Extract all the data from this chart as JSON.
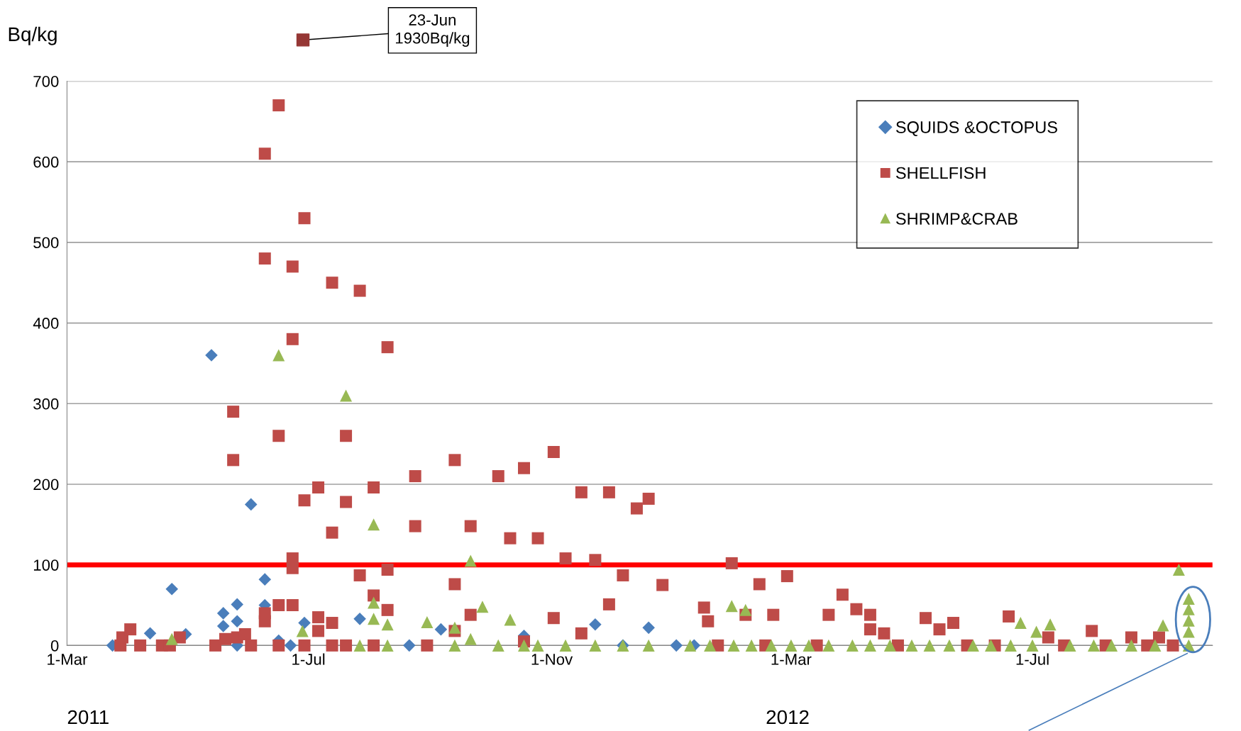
{
  "chart_data": {
    "type": "scatter",
    "ylabel": "Bq/kg",
    "xlim": [
      "2011-03-01",
      "2012-09-30"
    ],
    "xticks": [
      {
        "value": "2011-03-01",
        "label": "1-Mar"
      },
      {
        "value": "2011-07-01",
        "label": "1-Jul"
      },
      {
        "value": "2011-11-01",
        "label": "1-Nov"
      },
      {
        "value": "2012-03-01",
        "label": "1-Mar"
      },
      {
        "value": "2012-07-01",
        "label": "1-Jul"
      }
    ],
    "ylim": [
      0,
      700
    ],
    "yticks": [
      0,
      100,
      200,
      300,
      400,
      500,
      600,
      700
    ],
    "grid": "y",
    "legend": "top right",
    "ref_lines": [
      {
        "axis": "y",
        "value": 100,
        "color": "#ff0000",
        "line_style": "solid"
      }
    ],
    "annotations": [
      "23-Jun\n1930Bq/kg",
      "2011",
      "2012"
    ],
    "series": [
      {
        "name": "SQUIDS &OCTOPUS",
        "color": "#4a7ebb",
        "marker": "diamond",
        "x": [
          "2011-03-24",
          "2011-04-12",
          "2011-04-23",
          "2011-04-30",
          "2011-05-13",
          "2011-05-19",
          "2011-05-19",
          "2011-05-26",
          "2011-05-26",
          "2011-05-26",
          "2011-06-02",
          "2011-06-09",
          "2011-06-09",
          "2011-06-16",
          "2011-06-22",
          "2011-06-29",
          "2011-07-27",
          "2011-08-21",
          "2011-09-06",
          "2011-10-18",
          "2011-11-23",
          "2011-12-07",
          "2011-12-20",
          "2012-01-03",
          "2012-01-12"
        ],
        "values": [
          0,
          15,
          70,
          14,
          360,
          40,
          24,
          51,
          30,
          0,
          175,
          82,
          50,
          6,
          0,
          28,
          33,
          0,
          20,
          12,
          26,
          0,
          22,
          0,
          0
        ]
      },
      {
        "name": "SHELLFISH",
        "color": "#be4b48",
        "marker": "square",
        "x": [
          "2011-03-28",
          "2011-03-29",
          "2011-04-02",
          "2011-04-07",
          "2011-04-18",
          "2011-04-22",
          "2011-04-27",
          "2011-05-15",
          "2011-05-20",
          "2011-05-24",
          "2011-05-24",
          "2011-05-26",
          "2011-05-30",
          "2011-06-02",
          "2011-06-09",
          "2011-06-09",
          "2011-06-09",
          "2011-06-09",
          "2011-06-16",
          "2011-06-16",
          "2011-06-16",
          "2011-06-16",
          "2011-06-23",
          "2011-06-23",
          "2011-06-23",
          "2011-06-23",
          "2011-06-23",
          "2011-06-29",
          "2011-06-29",
          "2011-06-29",
          "2011-07-06",
          "2011-07-06",
          "2011-07-06",
          "2011-07-13",
          "2011-07-13",
          "2011-07-13",
          "2011-07-13",
          "2011-07-20",
          "2011-07-20",
          "2011-07-20",
          "2011-07-27",
          "2011-07-27",
          "2011-08-03",
          "2011-08-03",
          "2011-08-03",
          "2011-08-10",
          "2011-08-10",
          "2011-08-10",
          "2011-08-24",
          "2011-08-24",
          "2011-08-30",
          "2011-09-13",
          "2011-09-13",
          "2011-09-13",
          "2011-09-21",
          "2011-09-21",
          "2011-10-05",
          "2011-10-11",
          "2011-10-18",
          "2011-10-18",
          "2011-10-25",
          "2011-11-02",
          "2011-11-02",
          "2011-11-08",
          "2011-11-16",
          "2011-11-16",
          "2011-11-23",
          "2011-11-30",
          "2011-11-30",
          "2011-12-07",
          "2011-12-14",
          "2011-12-20",
          "2011-12-27",
          "2012-01-17",
          "2012-01-19",
          "2012-01-24",
          "2012-01-31",
          "2012-02-07",
          "2012-02-14",
          "2012-02-17",
          "2012-02-21",
          "2012-02-28",
          "2012-03-14",
          "2012-03-20",
          "2012-03-27",
          "2012-04-03",
          "2012-04-10",
          "2012-04-10",
          "2012-04-17",
          "2012-04-24",
          "2012-05-08",
          "2012-05-15",
          "2012-05-22",
          "2012-05-29",
          "2012-06-12",
          "2012-06-19",
          "2012-07-09",
          "2012-07-17",
          "2012-07-31",
          "2012-08-07",
          "2012-08-20",
          "2012-08-28",
          "2012-09-03",
          "2012-09-10"
        ],
        "values": [
          0,
          10,
          20,
          0,
          0,
          0,
          10,
          0,
          8,
          290,
          230,
          10,
          14,
          0,
          610,
          480,
          40,
          30,
          670,
          260,
          50,
          0,
          380,
          470,
          108,
          96,
          50,
          530,
          180,
          0,
          196,
          35,
          18,
          450,
          140,
          28,
          0,
          260,
          178,
          0,
          440,
          87,
          196,
          62,
          0,
          370,
          94,
          44,
          210,
          148,
          0,
          230,
          76,
          18,
          148,
          38,
          210,
          133,
          220,
          5,
          133,
          240,
          34,
          108,
          190,
          15,
          106,
          190,
          51,
          87,
          170,
          182,
          75,
          47,
          30,
          0,
          102,
          38,
          76,
          0,
          38,
          86,
          0,
          38,
          63,
          45,
          38,
          20,
          15,
          0,
          34,
          20,
          28,
          0,
          0,
          36,
          10,
          0,
          18,
          0,
          10,
          0,
          10,
          0
        ]
      },
      {
        "name": "SHRIMP&CRAB",
        "color": "#98b954",
        "marker": "triangle",
        "x": [
          "2011-04-23",
          "2011-06-16",
          "2011-06-28",
          "2011-07-20",
          "2011-07-27",
          "2011-08-03",
          "2011-08-03",
          "2011-08-03",
          "2011-08-10",
          "2011-08-10",
          "2011-08-30",
          "2011-09-13",
          "2011-09-13",
          "2011-09-21",
          "2011-09-21",
          "2011-09-27",
          "2011-10-05",
          "2011-10-11",
          "2011-10-18",
          "2011-10-25",
          "2011-11-08",
          "2011-11-23",
          "2011-12-07",
          "2011-12-20",
          "2012-01-10",
          "2012-01-20",
          "2012-01-31",
          "2012-02-01",
          "2012-02-07",
          "2012-02-10",
          "2012-02-20",
          "2012-03-01",
          "2012-03-10",
          "2012-03-20",
          "2012-04-01",
          "2012-04-10",
          "2012-04-20",
          "2012-05-01",
          "2012-05-10",
          "2012-05-20",
          "2012-06-01",
          "2012-06-10",
          "2012-06-20",
          "2012-06-25",
          "2012-07-01",
          "2012-07-03",
          "2012-07-10",
          "2012-07-20",
          "2012-08-01",
          "2012-08-10",
          "2012-08-20",
          "2012-09-01",
          "2012-09-05",
          "2012-09-13",
          "2012-09-18",
          "2012-09-18",
          "2012-09-18",
          "2012-09-18",
          "2012-09-18"
        ],
        "values": [
          8,
          360,
          18,
          310,
          0,
          150,
          53,
          33,
          26,
          0,
          29,
          22,
          0,
          105,
          8,
          48,
          0,
          32,
          0,
          0,
          0,
          0,
          0,
          0,
          0,
          0,
          49,
          0,
          44,
          0,
          0,
          0,
          0,
          0,
          0,
          0,
          0,
          0,
          0,
          0,
          0,
          0,
          0,
          28,
          0,
          17,
          26,
          0,
          0,
          0,
          0,
          0,
          25,
          94,
          58,
          45,
          31,
          17,
          0
        ]
      }
    ]
  }
}
